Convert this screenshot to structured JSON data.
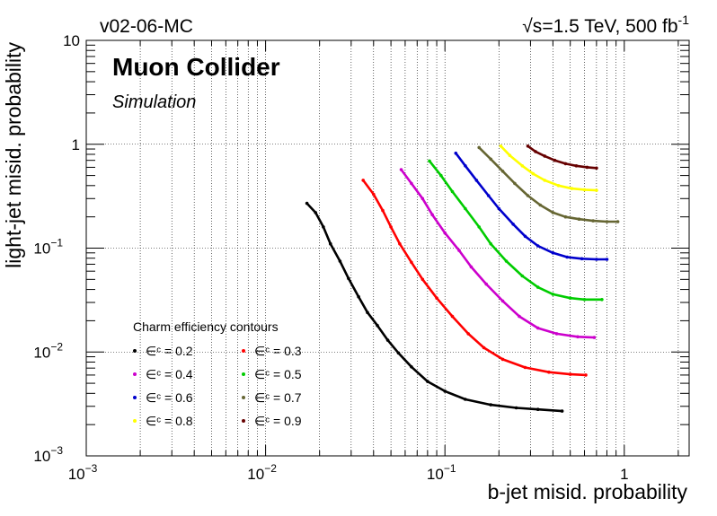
{
  "header": {
    "left": "v02-06-MC",
    "right_sqrt": "√s",
    "right_main": "=1.5 TeV, 500 fb",
    "right_sup": "-1"
  },
  "experiment": {
    "title": "Muon Collider",
    "subtitle": "Simulation"
  },
  "chart_data": {
    "type": "line",
    "title": "",
    "xlabel": "b-jet misid. probability",
    "ylabel": "light-jet misid. probability",
    "xscale": "log",
    "yscale": "log",
    "xlim": [
      0.001,
      2.3
    ],
    "ylim": [
      0.001,
      10
    ],
    "grid": true,
    "x_ticks": [
      {
        "value": 0.001,
        "base": "10",
        "exp": "−3"
      },
      {
        "value": 0.01,
        "base": "10",
        "exp": "−2"
      },
      {
        "value": 0.1,
        "base": "10",
        "exp": "−1"
      },
      {
        "value": 1,
        "base": "1",
        "exp": ""
      }
    ],
    "y_ticks": [
      {
        "value": 0.001,
        "base": "10",
        "exp": "−3"
      },
      {
        "value": 0.01,
        "base": "10",
        "exp": "−2"
      },
      {
        "value": 0.1,
        "base": "10",
        "exp": "−1"
      },
      {
        "value": 1,
        "base": "1",
        "exp": ""
      },
      {
        "value": 10,
        "base": "10",
        "exp": ""
      }
    ],
    "legend": {
      "title": "Charm efficiency contours",
      "position": "bottom-left"
    },
    "series": [
      {
        "name": "∈ᶜ = 0.2",
        "color": "#000000",
        "points": [
          [
            0.017,
            0.27
          ],
          [
            0.019,
            0.22
          ],
          [
            0.021,
            0.16
          ],
          [
            0.023,
            0.11
          ],
          [
            0.026,
            0.075
          ],
          [
            0.029,
            0.051
          ],
          [
            0.033,
            0.034
          ],
          [
            0.037,
            0.024
          ],
          [
            0.042,
            0.018
          ],
          [
            0.048,
            0.013
          ],
          [
            0.055,
            0.0098
          ],
          [
            0.065,
            0.0072
          ],
          [
            0.08,
            0.0052
          ],
          [
            0.1,
            0.0042
          ],
          [
            0.13,
            0.0035
          ],
          [
            0.18,
            0.0031
          ],
          [
            0.25,
            0.0029
          ],
          [
            0.33,
            0.0028
          ],
          [
            0.45,
            0.0027
          ]
        ]
      },
      {
        "name": "∈ᶜ = 0.3",
        "color": "#ff0000",
        "points": [
          [
            0.035,
            0.45
          ],
          [
            0.04,
            0.33
          ],
          [
            0.045,
            0.23
          ],
          [
            0.05,
            0.16
          ],
          [
            0.056,
            0.11
          ],
          [
            0.065,
            0.073
          ],
          [
            0.075,
            0.05
          ],
          [
            0.09,
            0.033
          ],
          [
            0.11,
            0.022
          ],
          [
            0.135,
            0.015
          ],
          [
            0.165,
            0.011
          ],
          [
            0.21,
            0.0085
          ],
          [
            0.28,
            0.0071
          ],
          [
            0.38,
            0.0064
          ],
          [
            0.5,
            0.0061
          ],
          [
            0.61,
            0.006
          ]
        ]
      },
      {
        "name": "∈ᶜ = 0.4",
        "color": "#cc00cc",
        "points": [
          [
            0.057,
            0.57
          ],
          [
            0.065,
            0.42
          ],
          [
            0.075,
            0.3
          ],
          [
            0.085,
            0.21
          ],
          [
            0.1,
            0.14
          ],
          [
            0.12,
            0.095
          ],
          [
            0.14,
            0.066
          ],
          [
            0.17,
            0.045
          ],
          [
            0.21,
            0.031
          ],
          [
            0.26,
            0.022
          ],
          [
            0.33,
            0.017
          ],
          [
            0.42,
            0.015
          ],
          [
            0.55,
            0.014
          ],
          [
            0.68,
            0.0138
          ]
        ]
      },
      {
        "name": "∈ᶜ = 0.5",
        "color": "#00cc00",
        "points": [
          [
            0.082,
            0.69
          ],
          [
            0.095,
            0.5
          ],
          [
            0.11,
            0.35
          ],
          [
            0.13,
            0.24
          ],
          [
            0.155,
            0.16
          ],
          [
            0.18,
            0.11
          ],
          [
            0.22,
            0.075
          ],
          [
            0.27,
            0.054
          ],
          [
            0.33,
            0.042
          ],
          [
            0.4,
            0.036
          ],
          [
            0.5,
            0.033
          ],
          [
            0.6,
            0.032
          ],
          [
            0.75,
            0.032
          ]
        ]
      },
      {
        "name": "∈ᶜ = 0.6",
        "color": "#0000cc",
        "points": [
          [
            0.115,
            0.82
          ],
          [
            0.13,
            0.62
          ],
          [
            0.15,
            0.45
          ],
          [
            0.175,
            0.32
          ],
          [
            0.2,
            0.24
          ],
          [
            0.24,
            0.17
          ],
          [
            0.28,
            0.13
          ],
          [
            0.33,
            0.105
          ],
          [
            0.4,
            0.09
          ],
          [
            0.48,
            0.082
          ],
          [
            0.58,
            0.079
          ],
          [
            0.7,
            0.078
          ],
          [
            0.8,
            0.078
          ]
        ]
      },
      {
        "name": "∈ᶜ = 0.7",
        "color": "#666633",
        "points": [
          [
            0.155,
            0.93
          ],
          [
            0.18,
            0.72
          ],
          [
            0.21,
            0.55
          ],
          [
            0.245,
            0.42
          ],
          [
            0.29,
            0.32
          ],
          [
            0.34,
            0.26
          ],
          [
            0.4,
            0.22
          ],
          [
            0.47,
            0.2
          ],
          [
            0.56,
            0.19
          ],
          [
            0.67,
            0.183
          ],
          [
            0.8,
            0.18
          ],
          [
            0.92,
            0.18
          ]
        ]
      },
      {
        "name": "∈ᶜ = 0.8",
        "color": "#ffff00",
        "points": [
          [
            0.205,
            0.96
          ],
          [
            0.23,
            0.78
          ],
          [
            0.27,
            0.62
          ],
          [
            0.31,
            0.52
          ],
          [
            0.36,
            0.45
          ],
          [
            0.43,
            0.4
          ],
          [
            0.51,
            0.375
          ],
          [
            0.6,
            0.365
          ],
          [
            0.7,
            0.36
          ]
        ]
      },
      {
        "name": "∈ᶜ = 0.9",
        "color": "#660000",
        "points": [
          [
            0.29,
            0.96
          ],
          [
            0.32,
            0.85
          ],
          [
            0.36,
            0.77
          ],
          [
            0.41,
            0.7
          ],
          [
            0.47,
            0.65
          ],
          [
            0.54,
            0.62
          ],
          [
            0.62,
            0.6
          ],
          [
            0.7,
            0.59
          ]
        ]
      }
    ]
  }
}
